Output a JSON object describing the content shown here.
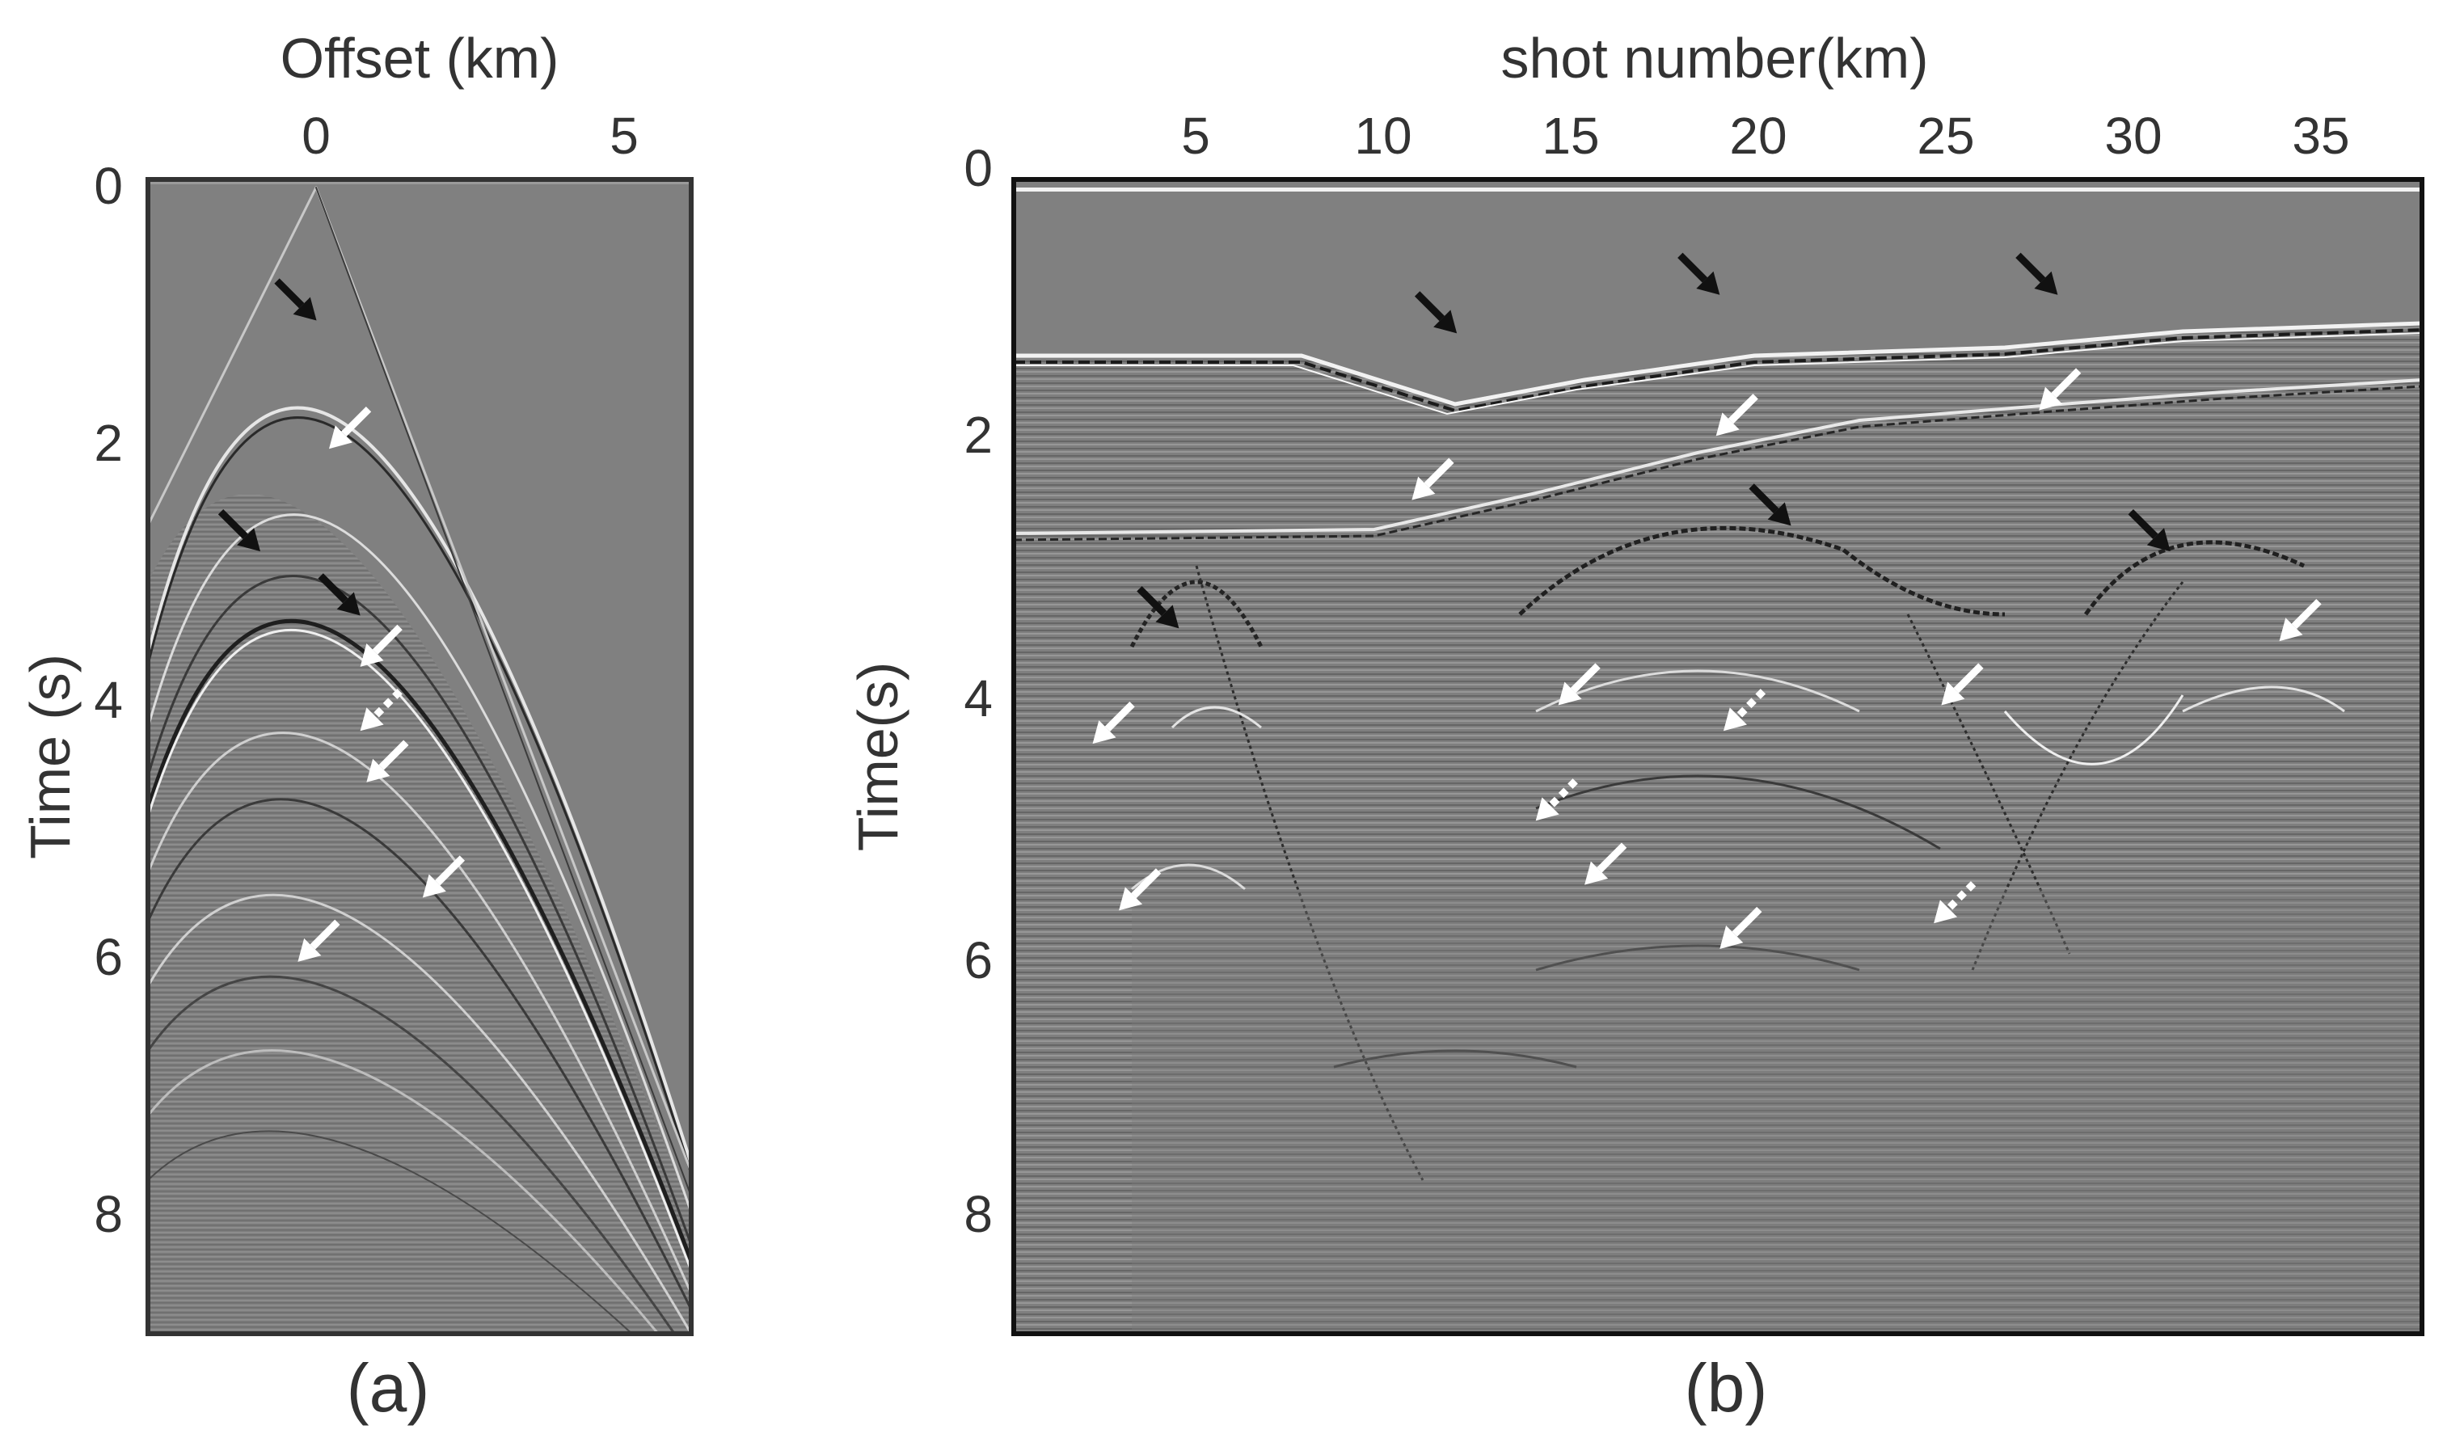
{
  "figure": {
    "panels": [
      {
        "id": "a",
        "caption": "(a)",
        "x_axis": {
          "title": "Offset (km)",
          "position": "top",
          "ticks": [
            "0",
            "5"
          ],
          "tick_values": [
            0,
            5
          ],
          "range": [
            -2.7,
            6.0
          ]
        },
        "y_axis": {
          "title": "Time (s)",
          "ticks": [
            "0",
            "2",
            "4",
            "6",
            "8"
          ],
          "tick_values": [
            0,
            2,
            4,
            6,
            8
          ],
          "range": [
            0,
            9
          ]
        },
        "annotations": [
          {
            "kind": "arrow",
            "color": "black",
            "style": "solid",
            "at_x": 0.0,
            "at_t": 1.1
          },
          {
            "kind": "arrow",
            "color": "black",
            "style": "solid",
            "at_x": -0.9,
            "at_t": 2.9
          },
          {
            "kind": "arrow",
            "color": "black",
            "style": "solid",
            "at_x": 0.7,
            "at_t": 3.4
          },
          {
            "kind": "arrow",
            "color": "white",
            "style": "solid",
            "at_x": 0.2,
            "at_t": 2.1
          },
          {
            "kind": "arrow",
            "color": "white",
            "style": "solid",
            "at_x": 0.7,
            "at_t": 3.8
          },
          {
            "kind": "arrow",
            "color": "white",
            "style": "dotted",
            "at_x": 0.7,
            "at_t": 4.3
          },
          {
            "kind": "arrow",
            "color": "white",
            "style": "solid",
            "at_x": 0.8,
            "at_t": 4.7
          },
          {
            "kind": "arrow",
            "color": "white",
            "style": "solid",
            "at_x": 1.7,
            "at_t": 5.6
          },
          {
            "kind": "arrow",
            "color": "white",
            "style": "solid",
            "at_x": -0.3,
            "at_t": 6.1
          }
        ]
      },
      {
        "id": "b",
        "caption": "(b)",
        "x_axis": {
          "title": "shot number(km)",
          "position": "top",
          "ticks": [
            "5",
            "10",
            "15",
            "20",
            "25",
            "30",
            "35"
          ],
          "tick_values": [
            5,
            10,
            15,
            20,
            25,
            30,
            35
          ],
          "range": [
            0.5,
            38
          ]
        },
        "y_axis": {
          "title": "Time(s)",
          "ticks": [
            "0",
            "2",
            "4",
            "6",
            "8"
          ],
          "tick_values": [
            0,
            2,
            4,
            6,
            8
          ],
          "range": [
            0,
            9
          ]
        },
        "annotations": [
          {
            "kind": "arrow",
            "color": "black",
            "style": "solid",
            "at_x": 12.3,
            "at_t": 1.2
          },
          {
            "kind": "arrow",
            "color": "black",
            "style": "solid",
            "at_x": 19.3,
            "at_t": 0.9
          },
          {
            "kind": "arrow",
            "color": "black",
            "style": "solid",
            "at_x": 28.3,
            "at_t": 0.9
          },
          {
            "kind": "arrow",
            "color": "black",
            "style": "solid",
            "at_x": 21.2,
            "at_t": 2.7
          },
          {
            "kind": "arrow",
            "color": "black",
            "style": "solid",
            "at_x": 31.3,
            "at_t": 2.9
          },
          {
            "kind": "arrow",
            "color": "black",
            "style": "solid",
            "at_x": 4.9,
            "at_t": 3.5
          },
          {
            "kind": "arrow",
            "color": "white",
            "style": "solid",
            "at_x": 27.8,
            "at_t": 1.8
          },
          {
            "kind": "arrow",
            "color": "white",
            "style": "solid",
            "at_x": 19.2,
            "at_t": 2.0
          },
          {
            "kind": "arrow",
            "color": "white",
            "style": "solid",
            "at_x": 11.1,
            "at_t": 2.5
          },
          {
            "kind": "arrow",
            "color": "white",
            "style": "solid",
            "at_x": 34.2,
            "at_t": 3.6
          },
          {
            "kind": "arrow",
            "color": "white",
            "style": "solid",
            "at_x": 15.0,
            "at_t": 4.1
          },
          {
            "kind": "arrow",
            "color": "white",
            "style": "solid",
            "at_x": 25.2,
            "at_t": 4.1
          },
          {
            "kind": "arrow",
            "color": "white",
            "style": "solid",
            "at_x": 2.6,
            "at_t": 4.4
          },
          {
            "kind": "arrow",
            "color": "white",
            "style": "dotted",
            "at_x": 19.4,
            "at_t": 4.3
          },
          {
            "kind": "arrow",
            "color": "white",
            "style": "dotted",
            "at_x": 14.4,
            "at_t": 5.0
          },
          {
            "kind": "arrow",
            "color": "white",
            "style": "solid",
            "at_x": 15.7,
            "at_t": 5.5
          },
          {
            "kind": "arrow",
            "color": "white",
            "style": "solid",
            "at_x": 3.3,
            "at_t": 5.7
          },
          {
            "kind": "arrow",
            "color": "white",
            "style": "solid",
            "at_x": 19.3,
            "at_t": 6.0
          },
          {
            "kind": "arrow",
            "color": "white",
            "style": "dotted",
            "at_x": 25.0,
            "at_t": 5.8
          }
        ]
      }
    ],
    "colors": {
      "background": "#808080",
      "frame": "#333333",
      "text": "#333333",
      "arrow_black": "#111111",
      "arrow_white": "#ffffff"
    }
  }
}
